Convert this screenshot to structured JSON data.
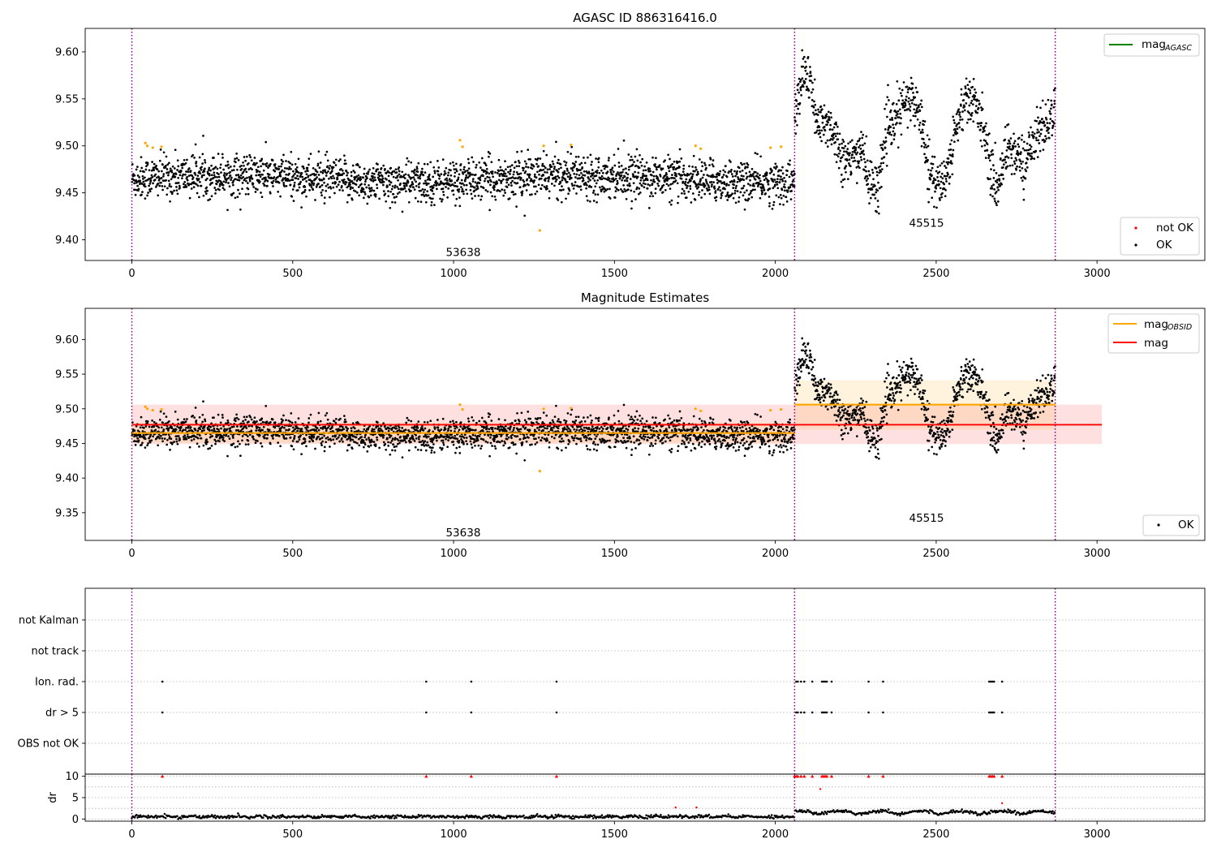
{
  "chart_data": [
    {
      "type": "scatter",
      "title": "AGASC ID 886316416.0",
      "xlim": [
        -145,
        3335
      ],
      "ylim": [
        9.378,
        9.625
      ],
      "xticks": [
        0,
        500,
        1000,
        1500,
        2000,
        2500,
        3000
      ],
      "yticks": [
        9.4,
        9.45,
        9.5,
        9.55,
        9.6
      ],
      "ytick_labels": [
        "9.40",
        "9.45",
        "9.50",
        "9.55",
        "9.60"
      ],
      "obs_boundaries": [
        0,
        2060,
        2870
      ],
      "obsids": [
        {
          "label": "53638",
          "x": 1030,
          "y": 9.387
        },
        {
          "label": "45515",
          "x": 2470,
          "y": 9.418
        }
      ],
      "legend_upper": [
        {
          "label": "mag",
          "sub": "AGASC",
          "color": "#008000"
        }
      ],
      "legend_lower": [
        {
          "label": "not OK",
          "color": "#ff0000"
        },
        {
          "label": "OK",
          "color": "#000000"
        }
      ],
      "segments": [
        {
          "x0": 0,
          "x1": 2060,
          "mean": 9.465,
          "noise": 0.011,
          "mode": "flat"
        },
        {
          "x0": 2060,
          "x1": 2870,
          "mode": "wave",
          "knots": [
            [
              2060,
              9.53
            ],
            [
              2090,
              9.58
            ],
            [
              2110,
              9.565
            ],
            [
              2130,
              9.52
            ],
            [
              2170,
              9.525
            ],
            [
              2200,
              9.495
            ],
            [
              2230,
              9.48
            ],
            [
              2270,
              9.5
            ],
            [
              2290,
              9.46
            ],
            [
              2320,
              9.455
            ],
            [
              2340,
              9.51
            ],
            [
              2370,
              9.525
            ],
            [
              2400,
              9.545
            ],
            [
              2430,
              9.55
            ],
            [
              2460,
              9.52
            ],
            [
              2480,
              9.47
            ],
            [
              2510,
              9.455
            ],
            [
              2540,
              9.48
            ],
            [
              2560,
              9.52
            ],
            [
              2590,
              9.55
            ],
            [
              2620,
              9.545
            ],
            [
              2650,
              9.52
            ],
            [
              2670,
              9.47
            ],
            [
              2690,
              9.455
            ],
            [
              2720,
              9.5
            ],
            [
              2750,
              9.49
            ],
            [
              2780,
              9.48
            ],
            [
              2800,
              9.51
            ],
            [
              2840,
              9.52
            ],
            [
              2870,
              9.54
            ]
          ],
          "noise": 0.013
        }
      ],
      "flagged_points": [
        [
          42,
          9.503
        ],
        [
          48,
          9.5
        ],
        [
          65,
          9.498
        ],
        [
          92,
          9.499
        ],
        [
          1020,
          9.506
        ],
        [
          1028,
          9.499
        ],
        [
          1268,
          9.41
        ],
        [
          1280,
          9.5
        ],
        [
          1365,
          9.501
        ],
        [
          1752,
          9.5
        ],
        [
          1768,
          9.497
        ],
        [
          1985,
          9.498
        ],
        [
          2018,
          9.499
        ]
      ]
    },
    {
      "type": "scatter",
      "title": "Magnitude Estimates",
      "xlim": [
        -145,
        3335
      ],
      "ylim": [
        9.31,
        9.645
      ],
      "xticks": [
        0,
        500,
        1000,
        1500,
        2000,
        2500,
        3000
      ],
      "yticks": [
        9.35,
        9.4,
        9.45,
        9.5,
        9.55,
        9.6
      ],
      "ytick_labels": [
        "9.35",
        "9.40",
        "9.45",
        "9.50",
        "9.55",
        "9.60"
      ],
      "obs_boundaries": [
        0,
        2060,
        2870
      ],
      "obsids": [
        {
          "label": "53638",
          "x": 1030,
          "y": 9.322
        },
        {
          "label": "45515",
          "x": 2470,
          "y": 9.343
        }
      ],
      "legend_upper": [
        {
          "label": "mag",
          "sub": "OBSID",
          "color": "#ffa500"
        },
        {
          "label": "mag",
          "sub": "",
          "color": "#ff0000"
        }
      ],
      "legend_lower": [
        {
          "label": "OK",
          "color": "#000000"
        }
      ],
      "mag_line": {
        "value": 9.477,
        "band": [
          9.449,
          9.506
        ],
        "x0": 0,
        "x1": 3015,
        "color": "#ff0000"
      },
      "obsid_mags": [
        {
          "x0": 0,
          "x1": 2060,
          "value": 9.465,
          "band": [
            9.451,
            9.48
          ]
        },
        {
          "x0": 2060,
          "x1": 2870,
          "value": 9.506,
          "band": [
            9.47,
            9.541
          ]
        }
      ]
    },
    {
      "type": "scatter",
      "title": "",
      "xlim": [
        -145,
        3335
      ],
      "categories": [
        "not Kalman",
        "not track",
        "Ion. rad.",
        "dr > 5",
        "OBS not OK"
      ],
      "flag_rows": {
        "Ion. rad.": [
          95,
          915,
          1055,
          1320,
          2065,
          2070,
          2080,
          2090,
          2115,
          2145,
          2150,
          2155,
          2160,
          2175,
          2290,
          2335,
          2665,
          2670,
          2675,
          2680,
          2705
        ],
        "dr > 5": [
          95,
          915,
          1055,
          1320,
          2065,
          2070,
          2080,
          2090,
          2115,
          2145,
          2150,
          2155,
          2160,
          2175,
          2290,
          2335,
          2665,
          2670,
          2675,
          2680,
          2705
        ]
      },
      "obs_boundaries": [
        0,
        2060,
        2870
      ]
    },
    {
      "type": "scatter",
      "ylabel": "dr",
      "xlim": [
        -145,
        3335
      ],
      "ylim": [
        -0.5,
        10.5
      ],
      "xticks": [
        0,
        500,
        1000,
        1500,
        2000,
        2500,
        3000
      ],
      "yticks": [
        0,
        5,
        10
      ],
      "ytick_labels": [
        "0",
        "5",
        "10"
      ],
      "clipped_points": [
        95,
        915,
        1055,
        1320,
        2060,
        2065,
        2070,
        2080,
        2090,
        2115,
        2145,
        2150,
        2155,
        2160,
        2175,
        2290,
        2335,
        2665,
        2670,
        2675,
        2680,
        2705
      ],
      "outliers": [
        [
          2140,
          7.0
        ],
        [
          2705,
          3.7
        ],
        [
          1690,
          2.7
        ],
        [
          1755,
          2.7
        ]
      ],
      "obs_boundaries": [
        0,
        2060,
        2870
      ]
    }
  ]
}
